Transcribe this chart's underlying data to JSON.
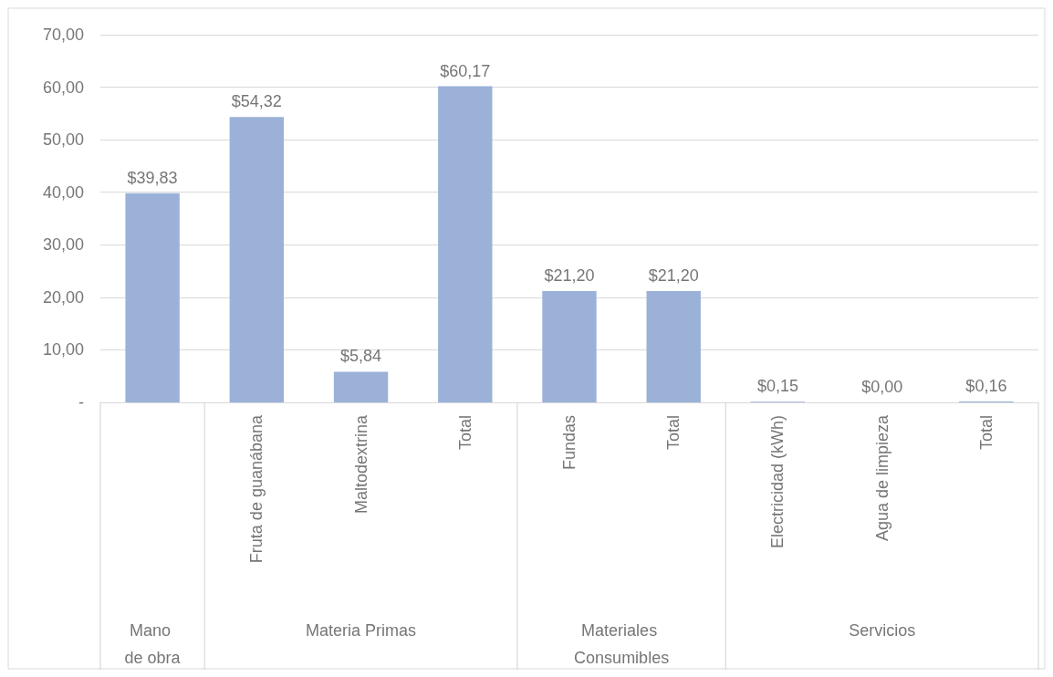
{
  "chart_data": {
    "type": "bar",
    "categories": [
      null,
      "Fruta de guanábana",
      "Maltodextrina",
      "Total",
      "Fundas",
      "Total",
      "Electricidad (kWh)",
      "Agua de limpieza",
      "Total"
    ],
    "values": [
      39.83,
      54.32,
      5.84,
      60.17,
      21.2,
      21.2,
      0.15,
      0,
      0.16
    ],
    "value_labels": [
      "$39,83",
      "$54,32",
      "$5,84",
      "$60,17",
      "$21,20",
      "$21,20",
      "$0,15",
      "$0,00",
      "$0,16"
    ],
    "color": "#9bb1d8",
    "ylim": [
      0,
      70
    ],
    "yticks": [
      {
        "value": 0,
        "label": "-"
      },
      {
        "value": 10,
        "label": "10,00"
      },
      {
        "value": 20,
        "label": "20,00"
      },
      {
        "value": 30,
        "label": "30,00"
      },
      {
        "value": 40,
        "label": "40,00"
      },
      {
        "value": 50,
        "label": "50,00"
      },
      {
        "value": 60,
        "label": "60,00"
      },
      {
        "value": 70,
        "label": "70,00"
      }
    ],
    "grid": "y",
    "annotations": [
      "Mano de obra",
      "Materia Primas",
      "Materiales Consumibles",
      "Servicios"
    ]
  }
}
